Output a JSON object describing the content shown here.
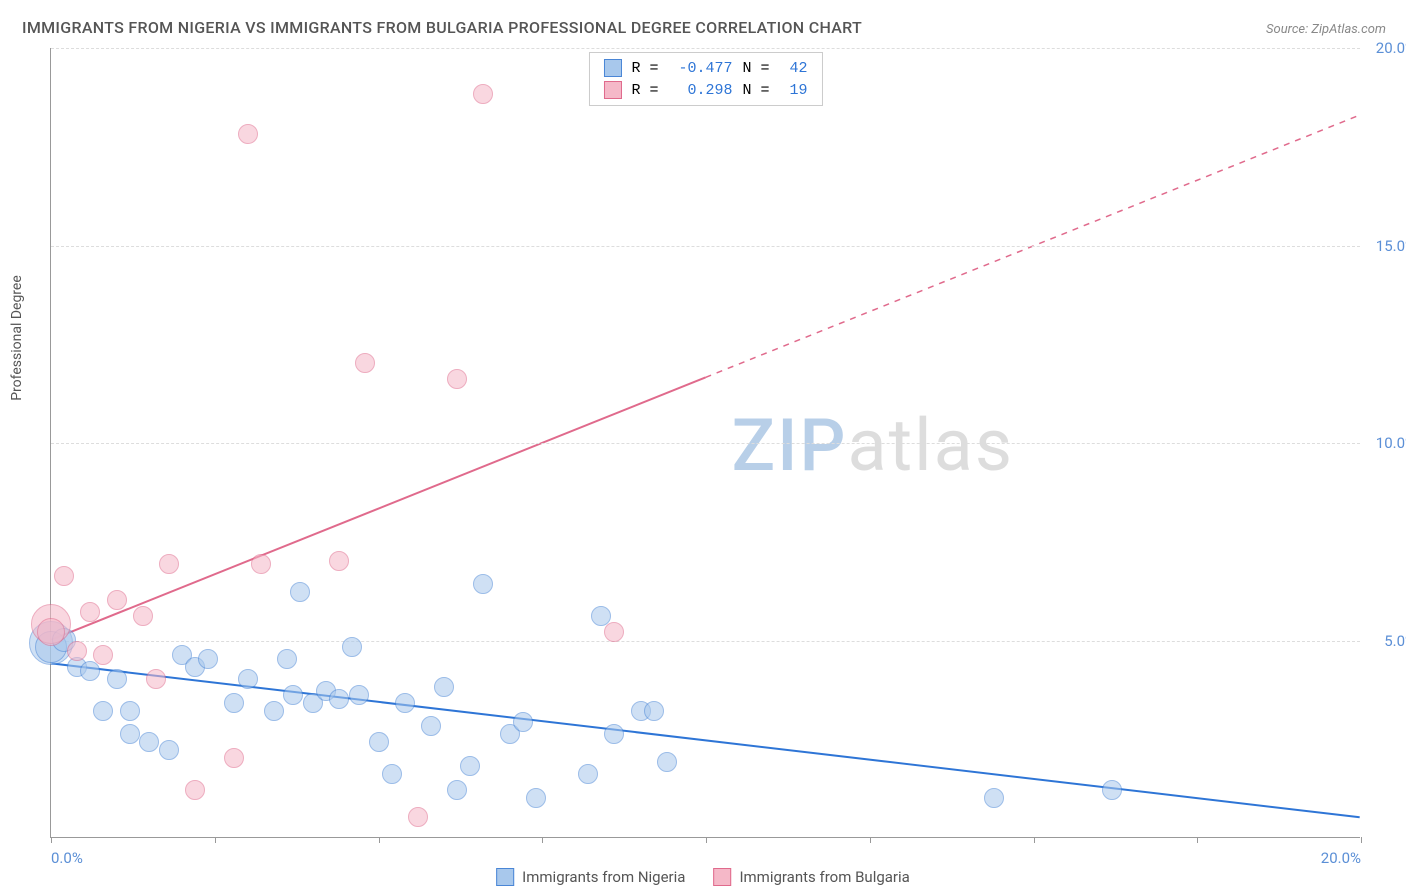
{
  "title": "IMMIGRANTS FROM NIGERIA VS IMMIGRANTS FROM BULGARIA PROFESSIONAL DEGREE CORRELATION CHART",
  "source": "Source: ZipAtlas.com",
  "y_axis_title": "Professional Degree",
  "watermark": {
    "part1": "ZIP",
    "part2": "atlas"
  },
  "chart": {
    "type": "scatter",
    "background_color": "#ffffff",
    "grid_color": "#dddddd",
    "axis_color": "#999999",
    "tick_label_color": "#5b8fd6",
    "tick_fontsize": 15,
    "xlim": [
      0,
      20
    ],
    "ylim": [
      0,
      20
    ],
    "y_ticks": [
      5,
      10,
      15,
      20
    ],
    "y_tick_labels": [
      "5.0%",
      "10.0%",
      "15.0%",
      "20.0%"
    ],
    "x_ticks": [
      0,
      2.5,
      5,
      7.5,
      10,
      12.5,
      15,
      17.5,
      20
    ],
    "x_major_labels": {
      "0": "0.0%",
      "20": "20.0%"
    },
    "series": [
      {
        "name": "Immigrants from Nigeria",
        "fill_color": "#a8c8ec",
        "stroke_color": "#4a86d6",
        "fill_opacity": 0.55,
        "marker_radius": 10,
        "trend": {
          "x1": 0,
          "y1": 4.4,
          "x2": 20,
          "y2": 0.5,
          "color": "#2e75d6",
          "solid_until_x": 20
        },
        "R": "-0.477",
        "N": "42",
        "points": [
          {
            "x": 0.0,
            "y": 4.9,
            "r": 22
          },
          {
            "x": 0.0,
            "y": 4.8,
            "r": 16
          },
          {
            "x": 0.2,
            "y": 5.0,
            "r": 12
          },
          {
            "x": 0.4,
            "y": 4.3,
            "r": 10
          },
          {
            "x": 0.6,
            "y": 4.2,
            "r": 10
          },
          {
            "x": 0.8,
            "y": 3.2,
            "r": 10
          },
          {
            "x": 1.0,
            "y": 4.0,
            "r": 10
          },
          {
            "x": 1.2,
            "y": 2.6,
            "r": 10
          },
          {
            "x": 1.2,
            "y": 3.2,
            "r": 10
          },
          {
            "x": 1.5,
            "y": 2.4,
            "r": 10
          },
          {
            "x": 1.8,
            "y": 2.2,
            "r": 10
          },
          {
            "x": 2.0,
            "y": 4.6,
            "r": 10
          },
          {
            "x": 2.2,
            "y": 4.3,
            "r": 10
          },
          {
            "x": 2.4,
            "y": 4.5,
            "r": 10
          },
          {
            "x": 2.8,
            "y": 3.4,
            "r": 10
          },
          {
            "x": 3.0,
            "y": 4.0,
            "r": 10
          },
          {
            "x": 3.4,
            "y": 3.2,
            "r": 10
          },
          {
            "x": 3.6,
            "y": 4.5,
            "r": 10
          },
          {
            "x": 3.7,
            "y": 3.6,
            "r": 10
          },
          {
            "x": 3.8,
            "y": 6.2,
            "r": 10
          },
          {
            "x": 4.0,
            "y": 3.4,
            "r": 10
          },
          {
            "x": 4.2,
            "y": 3.7,
            "r": 10
          },
          {
            "x": 4.4,
            "y": 3.5,
            "r": 10
          },
          {
            "x": 4.6,
            "y": 4.8,
            "r": 10
          },
          {
            "x": 4.7,
            "y": 3.6,
            "r": 10
          },
          {
            "x": 5.0,
            "y": 2.4,
            "r": 10
          },
          {
            "x": 5.2,
            "y": 1.6,
            "r": 10
          },
          {
            "x": 5.4,
            "y": 3.4,
            "r": 10
          },
          {
            "x": 5.8,
            "y": 2.8,
            "r": 10
          },
          {
            "x": 6.0,
            "y": 3.8,
            "r": 10
          },
          {
            "x": 6.2,
            "y": 1.2,
            "r": 10
          },
          {
            "x": 6.4,
            "y": 1.8,
            "r": 10
          },
          {
            "x": 6.6,
            "y": 6.4,
            "r": 10
          },
          {
            "x": 7.0,
            "y": 2.6,
            "r": 10
          },
          {
            "x": 7.2,
            "y": 2.9,
            "r": 10
          },
          {
            "x": 7.4,
            "y": 1.0,
            "r": 10
          },
          {
            "x": 8.2,
            "y": 1.6,
            "r": 10
          },
          {
            "x": 8.4,
            "y": 5.6,
            "r": 10
          },
          {
            "x": 8.6,
            "y": 2.6,
            "r": 10
          },
          {
            "x": 9.0,
            "y": 3.2,
            "r": 10
          },
          {
            "x": 9.2,
            "y": 3.2,
            "r": 10
          },
          {
            "x": 9.4,
            "y": 1.9,
            "r": 10
          },
          {
            "x": 14.4,
            "y": 1.0,
            "r": 10
          },
          {
            "x": 16.2,
            "y": 1.2,
            "r": 10
          }
        ]
      },
      {
        "name": "Immigrants from Bulgaria",
        "fill_color": "#f5b8c8",
        "stroke_color": "#e06a8c",
        "fill_opacity": 0.55,
        "marker_radius": 10,
        "trend": {
          "x1": 0,
          "y1": 5.0,
          "x2": 20,
          "y2": 18.3,
          "color": "#e06a8c",
          "solid_until_x": 10
        },
        "R": "0.298",
        "N": "19",
        "points": [
          {
            "x": 0.0,
            "y": 5.4,
            "r": 20
          },
          {
            "x": 0.0,
            "y": 5.2,
            "r": 14
          },
          {
            "x": 0.2,
            "y": 6.6,
            "r": 10
          },
          {
            "x": 0.4,
            "y": 4.7,
            "r": 10
          },
          {
            "x": 0.6,
            "y": 5.7,
            "r": 10
          },
          {
            "x": 0.8,
            "y": 4.6,
            "r": 10
          },
          {
            "x": 1.0,
            "y": 6.0,
            "r": 10
          },
          {
            "x": 1.4,
            "y": 5.6,
            "r": 10
          },
          {
            "x": 1.6,
            "y": 4.0,
            "r": 10
          },
          {
            "x": 1.8,
            "y": 6.9,
            "r": 10
          },
          {
            "x": 2.2,
            "y": 1.2,
            "r": 10
          },
          {
            "x": 2.8,
            "y": 2.0,
            "r": 10
          },
          {
            "x": 3.0,
            "y": 17.8,
            "r": 10
          },
          {
            "x": 3.2,
            "y": 6.9,
            "r": 10
          },
          {
            "x": 4.4,
            "y": 7.0,
            "r": 10
          },
          {
            "x": 4.8,
            "y": 12.0,
            "r": 10
          },
          {
            "x": 5.6,
            "y": 0.5,
            "r": 10
          },
          {
            "x": 6.2,
            "y": 11.6,
            "r": 10
          },
          {
            "x": 6.6,
            "y": 18.8,
            "r": 10
          },
          {
            "x": 8.6,
            "y": 5.2,
            "r": 10
          }
        ]
      }
    ]
  },
  "legend_top": {
    "r_label": "R =",
    "n_label": "N ="
  },
  "legend_bottom": [
    {
      "label": "Immigrants from Nigeria",
      "fill": "#a8c8ec",
      "stroke": "#4a86d6"
    },
    {
      "label": "Immigrants from Bulgaria",
      "fill": "#f5b8c8",
      "stroke": "#e06a8c"
    }
  ]
}
